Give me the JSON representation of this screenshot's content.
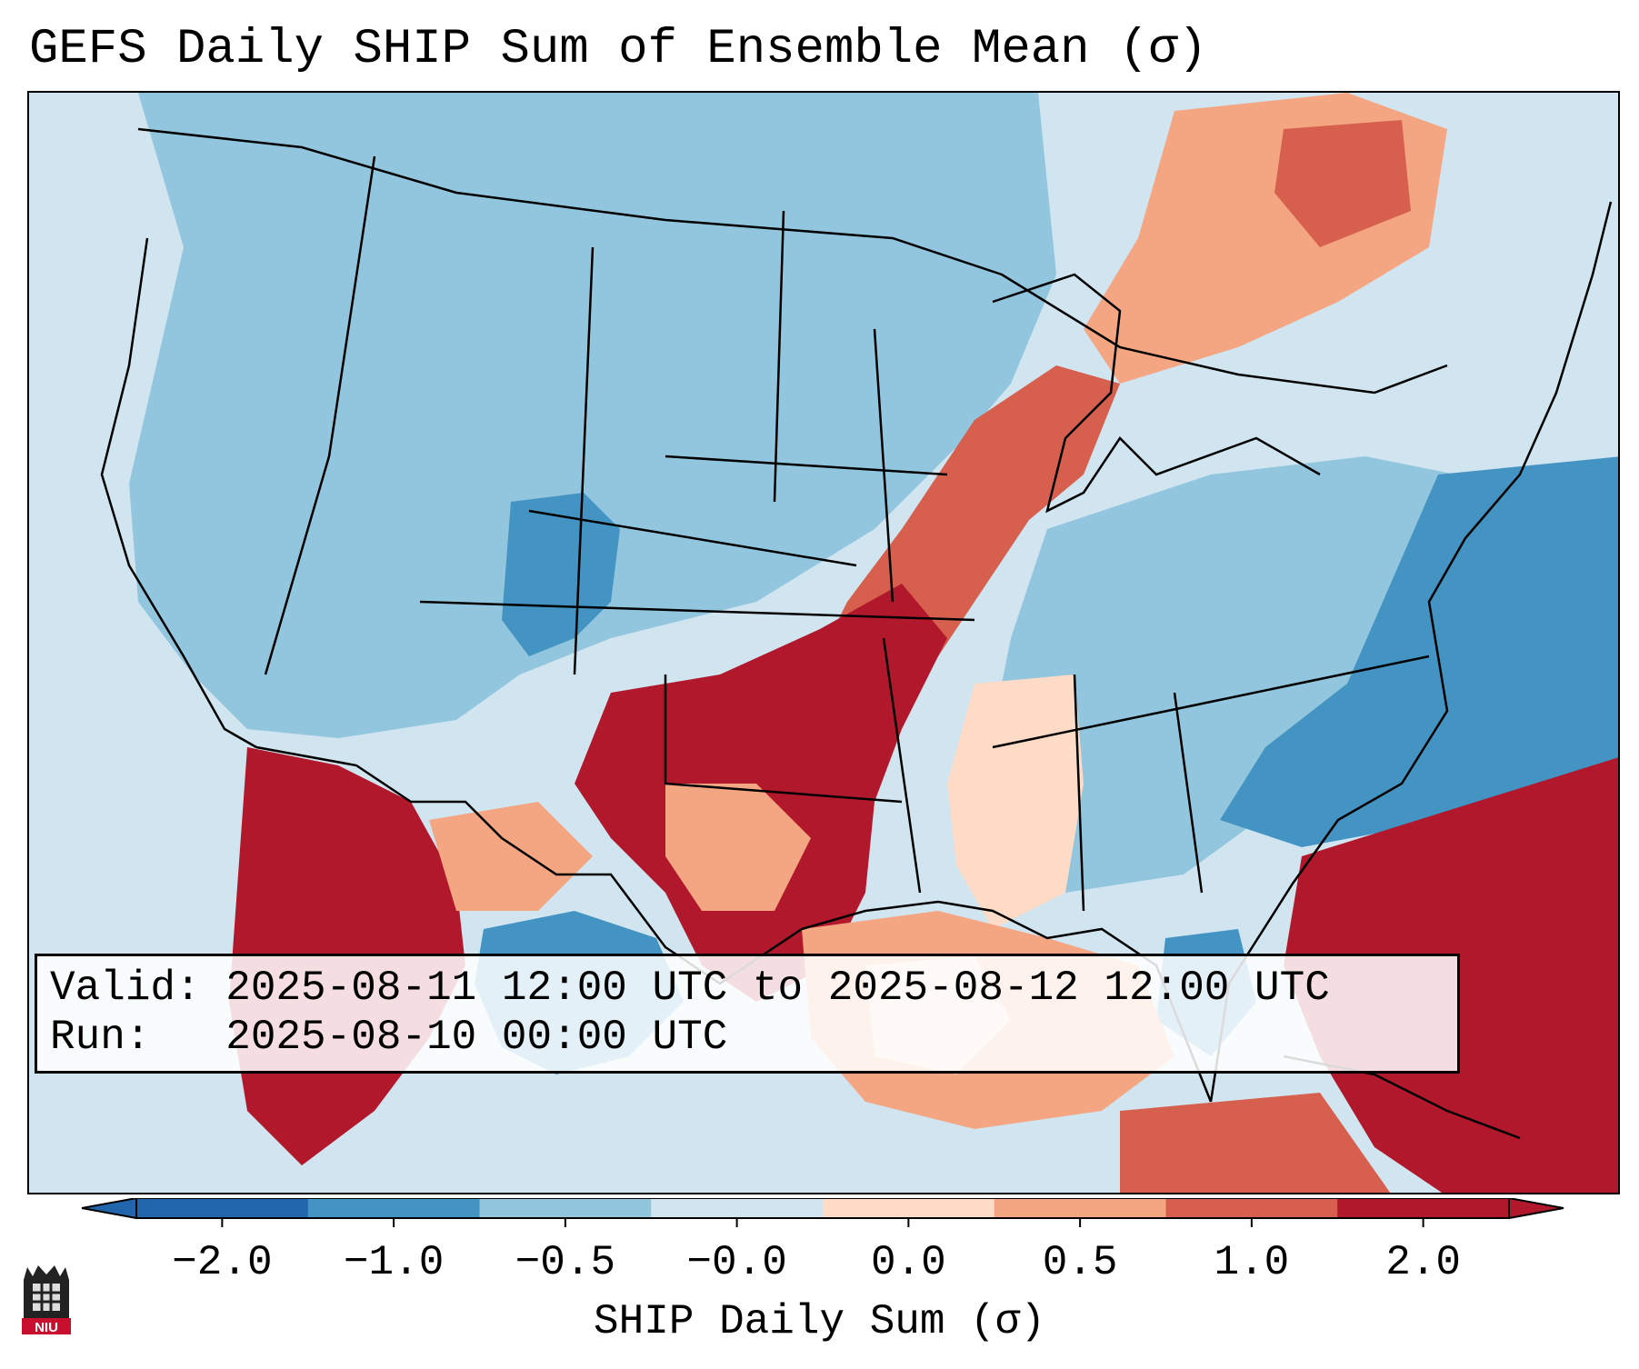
{
  "title": "GEFS Daily SHIP Sum of Ensemble Mean (σ)",
  "info": {
    "valid_line": "Valid: 2025-08-11 12:00 UTC to 2025-08-12 12:00 UTC",
    "run_line": "Run:   2025-08-10 00:00 UTC"
  },
  "colorbar": {
    "label": "SHIP Daily Sum (σ)",
    "tick_labels": [
      "−2.0",
      "−1.0",
      "−0.5",
      "−0.0",
      "0.0",
      "0.5",
      "1.0",
      "2.0"
    ],
    "colors": [
      "#2166ac",
      "#4393c3",
      "#92c5de",
      "#d1e5f0",
      "#fddbc7",
      "#f4a582",
      "#d6604d",
      "#b2182b"
    ],
    "extend": "both"
  },
  "map_regions": {
    "background_neutral": "#d1e5f0",
    "northern_plains_rockies": "#92c5de",
    "colorado_southwest": "#4393c3",
    "carolinas_virginia_atlantic": "#4393c3",
    "lower_mississippi_valley": "#fddbc7",
    "ohio_valley_gulf_states": "#92c5de",
    "central_plains_texas": "#b2182b",
    "corn_belt_great_lakes": "#d6604d",
    "sw_atlantic_florida": "#b2182b",
    "gulf_of_mexico": "#f4a582",
    "northern_mexico": "#b2182b",
    "southern_ontario_quebec": "#f4a582"
  },
  "logo": {
    "text": "NIU"
  }
}
